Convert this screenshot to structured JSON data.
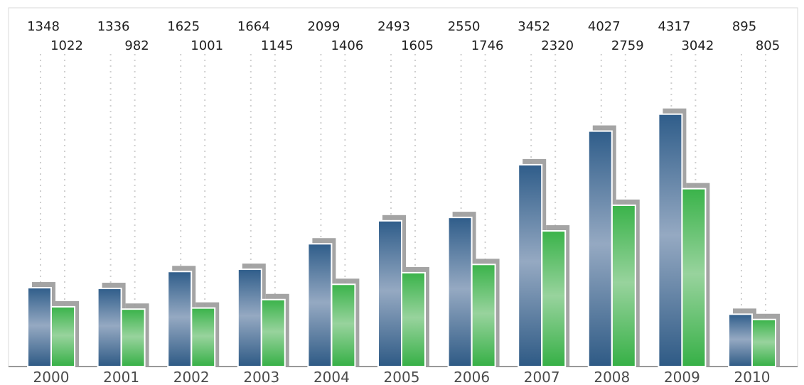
{
  "chart_data": {
    "type": "bar",
    "categories": [
      "2000",
      "2001",
      "2002",
      "2003",
      "2004",
      "2005",
      "2006",
      "2007",
      "2008",
      "2009",
      "2010"
    ],
    "series": [
      {
        "values": [
          1348,
          1336,
          1625,
          1664,
          2099,
          2493,
          2550,
          3452,
          4027,
          4317,
          895
        ],
        "color": "#2f5d8a"
      },
      {
        "values": [
          1022,
          982,
          1001,
          1145,
          1406,
          1605,
          1746,
          2320,
          2759,
          3042,
          805
        ],
        "color": "#3bb44a"
      }
    ],
    "ylim": [
      0,
      4617
    ],
    "grid": false,
    "data_labels": true
  }
}
